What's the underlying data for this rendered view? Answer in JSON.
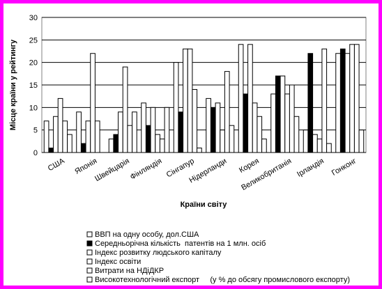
{
  "chart_data": {
    "type": "bar",
    "y_label": "Місце країни у рейтингу",
    "x_label": "Країни світу",
    "categories": [
      "США",
      "Японія",
      "Швейцарія",
      "Фінляндія",
      "Сінгапур",
      "Нідерланди",
      "Корея",
      "Великобританія",
      "Ірландія",
      "Гонконг"
    ],
    "series": [
      {
        "name": "ВВП на одну особу, дол.США",
        "color": "#ffffff",
        "values": [
          7,
          9,
          3,
          11,
          20,
          12,
          24,
          13,
          5,
          22
        ]
      },
      {
        "name": "Середньорічна кількість  патентів на 1 млн. осіб",
        "color": "#000000",
        "values": [
          1,
          2,
          4,
          6,
          9,
          10,
          13,
          17,
          22,
          23
        ]
      },
      {
        "name": "Індекс розвитку людського капіталу",
        "color": "#ffffff",
        "values": [
          8,
          7,
          9,
          10,
          23,
          11,
          24,
          17,
          4,
          22
        ]
      },
      {
        "name": "Індекс освіти",
        "color": "#ffffff",
        "values": [
          12,
          22,
          19,
          4,
          23,
          5,
          11,
          13,
          3,
          24
        ]
      },
      {
        "name": "Витрати на НДіДКР",
        "color": "#ffffff",
        "values": [
          7,
          7,
          6,
          3,
          14,
          18,
          8,
          15,
          23,
          24
        ]
      },
      {
        "name": "Високотехнологічний експорт     (у % до обсягу промислового експорту)",
        "color": "#ffffff",
        "values": [
          4,
          0,
          9,
          10,
          1,
          6,
          3,
          8,
          2,
          5
        ]
      }
    ],
    "ylim": [
      0,
      30
    ],
    "yticks": [
      0,
      5,
      10,
      15,
      20,
      25,
      30
    ],
    "grid": true
  }
}
